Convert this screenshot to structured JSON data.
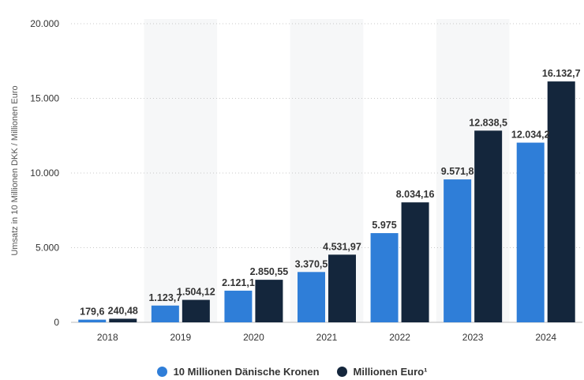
{
  "chart_data": {
    "type": "bar",
    "categories": [
      "2018",
      "2019",
      "2020",
      "2021",
      "2022",
      "2023",
      "2024"
    ],
    "ylabel": "Umsatz in 10 Millionen DKK / Millionen Euro",
    "ylim": [
      0,
      20000
    ],
    "yticks": [
      0,
      5000,
      10000,
      15000,
      20000
    ],
    "ytick_labels": [
      "0",
      "5.000",
      "10.000",
      "15.000",
      "20.000"
    ],
    "grid": true,
    "legend_position": "bottom",
    "series": [
      {
        "name": "10 Millionen Dänische Kronen",
        "color": "#2f7ed8",
        "values": [
          179.6,
          1123.7,
          2121.1,
          3370.5,
          5975,
          9571.8,
          12034.2
        ],
        "labels": [
          "179,6",
          "1.123,7",
          "2.121,1",
          "3.370,5",
          "5.975",
          "9.571,8",
          "12.034,2"
        ]
      },
      {
        "name": "Millionen Euro¹",
        "color": "#14263c",
        "values": [
          240.48,
          1504.12,
          2850.55,
          4531.97,
          8034.16,
          12838.5,
          16132.7
        ],
        "labels": [
          "240,48",
          "1.504,12",
          "2.850,55",
          "4.531,97",
          "8.034,16",
          "12.838,5",
          "16.132,7"
        ]
      }
    ]
  }
}
